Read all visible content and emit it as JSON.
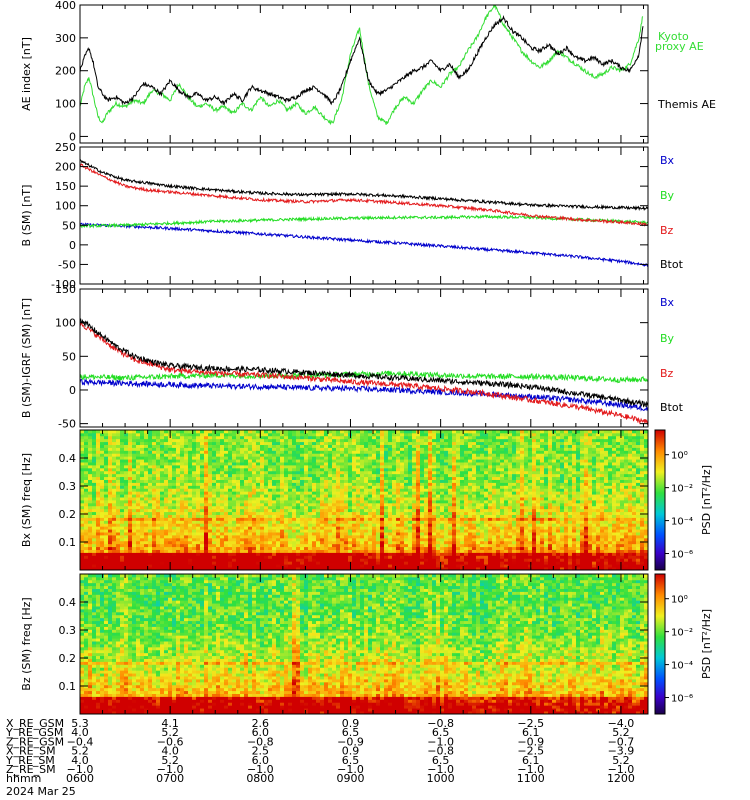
{
  "figure": {
    "date_label": "2024 Mar 25",
    "colors": {
      "black": "#000000",
      "red": "#e31a1c",
      "green": "#22dd22",
      "blue": "#0000cc",
      "kyoto": "#33dd33"
    }
  },
  "chart_data": [
    {
      "type": "line",
      "ylabel": "AE index [nT]",
      "ylim": [
        -20,
        400
      ],
      "yticks": [
        0,
        100,
        200,
        300,
        400
      ],
      "xlim": [
        6.0,
        12.3
      ],
      "series": [
        {
          "name": "Kyoto proxy AE",
          "color": "#33dd33",
          "x": [
            6.0,
            6.05,
            6.1,
            6.15,
            6.2,
            6.25,
            6.3,
            6.4,
            6.5,
            6.6,
            6.7,
            6.8,
            6.9,
            7.0,
            7.1,
            7.2,
            7.3,
            7.4,
            7.5,
            7.6,
            7.7,
            7.8,
            7.9,
            8.0,
            8.1,
            8.2,
            8.3,
            8.4,
            8.5,
            8.6,
            8.7,
            8.8,
            8.9,
            9.0,
            9.1,
            9.2,
            9.3,
            9.4,
            9.5,
            9.6,
            9.7,
            9.8,
            9.9,
            10.0,
            10.1,
            10.2,
            10.3,
            10.4,
            10.5,
            10.6,
            10.7,
            10.8,
            10.9,
            11.0,
            11.1,
            11.2,
            11.3,
            11.4,
            11.5,
            11.6,
            11.7,
            11.8,
            11.9,
            12.0,
            12.1,
            12.2,
            12.25
          ],
          "y": [
            90,
            150,
            180,
            120,
            60,
            40,
            70,
            100,
            90,
            110,
            100,
            140,
            130,
            110,
            160,
            120,
            90,
            100,
            80,
            90,
            70,
            100,
            80,
            120,
            90,
            110,
            80,
            100,
            70,
            90,
            60,
            40,
            110,
            250,
            330,
            160,
            60,
            40,
            90,
            120,
            100,
            140,
            170,
            150,
            190,
            210,
            260,
            300,
            360,
            400,
            340,
            300,
            260,
            230,
            210,
            230,
            260,
            240,
            220,
            200,
            180,
            190,
            210,
            200,
            220,
            300,
            380
          ]
        },
        {
          "name": "Themis AE",
          "color": "#000000",
          "x": [
            6.0,
            6.05,
            6.1,
            6.15,
            6.2,
            6.25,
            6.3,
            6.4,
            6.5,
            6.6,
            6.7,
            6.8,
            6.9,
            7.0,
            7.1,
            7.2,
            7.3,
            7.4,
            7.5,
            7.6,
            7.7,
            7.8,
            7.9,
            8.0,
            8.1,
            8.2,
            8.3,
            8.4,
            8.5,
            8.6,
            8.7,
            8.8,
            8.9,
            9.0,
            9.1,
            9.2,
            9.3,
            9.4,
            9.5,
            9.6,
            9.7,
            9.8,
            9.9,
            10.0,
            10.1,
            10.2,
            10.3,
            10.4,
            10.5,
            10.6,
            10.7,
            10.8,
            10.9,
            11.0,
            11.1,
            11.2,
            11.3,
            11.4,
            11.5,
            11.6,
            11.7,
            11.8,
            11.9,
            12.0,
            12.1,
            12.2,
            12.25
          ],
          "y": [
            200,
            240,
            270,
            220,
            150,
            130,
            110,
            120,
            100,
            120,
            160,
            150,
            130,
            170,
            140,
            120,
            130,
            110,
            120,
            100,
            130,
            110,
            150,
            140,
            130,
            120,
            110,
            120,
            140,
            150,
            130,
            100,
            150,
            230,
            300,
            170,
            130,
            140,
            160,
            180,
            200,
            210,
            230,
            200,
            220,
            180,
            200,
            250,
            300,
            340,
            360,
            320,
            300,
            270,
            260,
            280,
            250,
            270,
            240,
            230,
            240,
            220,
            230,
            210,
            200,
            250,
            350
          ]
        }
      ]
    },
    {
      "type": "line",
      "ylabel": "B (SM) [nT]",
      "ylim": [
        -100,
        250
      ],
      "yticks": [
        -100,
        -50,
        0,
        50,
        100,
        150,
        200,
        250
      ],
      "xlim": [
        6.0,
        12.3
      ],
      "series": [
        {
          "name": "Bx",
          "color": "#0000cc",
          "x": [
            6.0,
            6.5,
            7.0,
            7.5,
            8.0,
            8.5,
            9.0,
            9.5,
            10.0,
            10.5,
            11.0,
            11.5,
            12.0,
            12.3
          ],
          "y": [
            52,
            48,
            42,
            35,
            28,
            20,
            12,
            5,
            -3,
            -12,
            -20,
            -30,
            -42,
            -52
          ]
        },
        {
          "name": "By",
          "color": "#22dd22",
          "x": [
            6.0,
            6.5,
            7.0,
            7.5,
            8.0,
            8.5,
            9.0,
            9.5,
            10.0,
            10.5,
            11.0,
            11.5,
            12.0,
            12.3
          ],
          "y": [
            48,
            50,
            55,
            60,
            63,
            66,
            68,
            70,
            70,
            72,
            70,
            65,
            60,
            57
          ]
        },
        {
          "name": "Bz",
          "color": "#e31a1c",
          "x": [
            6.0,
            6.25,
            6.5,
            6.75,
            7.0,
            7.5,
            8.0,
            8.5,
            9.0,
            9.5,
            10.0,
            10.5,
            11.0,
            11.5,
            12.0,
            12.3
          ],
          "y": [
            205,
            175,
            150,
            140,
            135,
            125,
            115,
            110,
            115,
            108,
            100,
            90,
            75,
            65,
            58,
            52
          ]
        },
        {
          "name": "Btot",
          "color": "#000000",
          "x": [
            6.0,
            6.25,
            6.5,
            6.75,
            7.0,
            7.5,
            8.0,
            8.5,
            9.0,
            9.5,
            10.0,
            10.5,
            11.0,
            11.5,
            12.0,
            12.3
          ],
          "y": [
            215,
            185,
            165,
            158,
            150,
            140,
            132,
            128,
            130,
            125,
            118,
            110,
            102,
            98,
            95,
            93
          ]
        }
      ]
    },
    {
      "type": "line",
      "ylabel": "B (SM)-IGRF (SM) [nT]",
      "ylim": [
        -55,
        150
      ],
      "yticks": [
        -50,
        0,
        50,
        100,
        150
      ],
      "xlim": [
        6.0,
        12.3
      ],
      "series": [
        {
          "name": "Bx",
          "color": "#0000cc",
          "x": [
            6.0,
            6.5,
            7.0,
            7.5,
            8.0,
            8.5,
            9.0,
            9.5,
            10.0,
            10.5,
            11.0,
            11.5,
            12.0,
            12.3
          ],
          "y": [
            12,
            10,
            8,
            6,
            5,
            3,
            2,
            0,
            -3,
            -6,
            -10,
            -15,
            -22,
            -28
          ]
        },
        {
          "name": "By",
          "color": "#22dd22",
          "x": [
            6.0,
            6.5,
            7.0,
            7.5,
            8.0,
            8.5,
            9.0,
            9.5,
            10.0,
            10.5,
            11.0,
            11.5,
            12.0,
            12.3
          ],
          "y": [
            20,
            18,
            20,
            22,
            21,
            22,
            23,
            25,
            22,
            20,
            20,
            18,
            15,
            16
          ]
        },
        {
          "name": "Bz",
          "color": "#e31a1c",
          "x": [
            6.0,
            6.2,
            6.4,
            6.6,
            6.8,
            7.0,
            7.5,
            8.0,
            8.5,
            9.0,
            9.5,
            10.0,
            10.5,
            11.0,
            11.5,
            12.0,
            12.3
          ],
          "y": [
            100,
            80,
            60,
            45,
            38,
            30,
            25,
            22,
            18,
            12,
            8,
            2,
            -5,
            -15,
            -25,
            -38,
            -48
          ]
        },
        {
          "name": "Btot",
          "color": "#000000",
          "x": [
            6.0,
            6.2,
            6.4,
            6.6,
            6.8,
            7.0,
            7.5,
            8.0,
            8.5,
            9.0,
            9.5,
            10.0,
            10.5,
            11.0,
            11.5,
            12.0,
            12.3
          ],
          "y": [
            105,
            85,
            65,
            50,
            42,
            36,
            32,
            30,
            26,
            22,
            18,
            14,
            10,
            5,
            -5,
            -15,
            -22
          ]
        }
      ]
    },
    {
      "type": "heatmap",
      "ylabel": "Bx (SM) freq [Hz]",
      "yticks": [
        0.1,
        0.2,
        0.3,
        0.4
      ],
      "ylim": [
        0,
        0.5
      ],
      "xlim": [
        6.0,
        12.3
      ],
      "colorbar": {
        "label": "PSD [nT²/Hz]",
        "ticks": [
          "10⁰",
          "10⁻²",
          "10⁻⁴",
          "10⁻⁶"
        ],
        "log_values": [
          0,
          -2,
          -4,
          -6
        ],
        "range": [
          -7,
          1.5
        ]
      }
    },
    {
      "type": "heatmap",
      "ylabel": "Bz (SM) freq [Hz]",
      "yticks": [
        0.1,
        0.2,
        0.3,
        0.4
      ],
      "ylim": [
        0,
        0.5
      ],
      "xlim": [
        6.0,
        12.3
      ],
      "colorbar": {
        "label": "PSD [nT²/Hz]",
        "ticks": [
          "10⁰",
          "10⁻²",
          "10⁻⁴",
          "10⁻⁶"
        ],
        "log_values": [
          0,
          -2,
          -4,
          -6
        ],
        "range": [
          -7,
          1.5
        ]
      }
    }
  ],
  "legends": [
    [
      {
        "text": "Kyoto",
        "color": "#33dd33"
      },
      {
        "text": "proxy AE",
        "color": "#33dd33"
      },
      {
        "text": "Themis AE",
        "color": "#000000"
      }
    ],
    [
      {
        "text": "Bx",
        "color": "#0000cc"
      },
      {
        "text": "By",
        "color": "#22dd22"
      },
      {
        "text": "Bz",
        "color": "#e31a1c"
      },
      {
        "text": "Btot",
        "color": "#000000"
      }
    ],
    [
      {
        "text": "Bx",
        "color": "#0000cc"
      },
      {
        "text": "By",
        "color": "#22dd22"
      },
      {
        "text": "Bz",
        "color": "#e31a1c"
      },
      {
        "text": "Btot",
        "color": "#000000"
      }
    ]
  ],
  "orbit_table": {
    "times": [
      6,
      7,
      8,
      9,
      10,
      11,
      12
    ],
    "rows": [
      {
        "label": "X_RE_GSM",
        "values": [
          "5.3",
          "4.1",
          "2.6",
          "0.9",
          "−0.8",
          "−2.5",
          "−4.0"
        ]
      },
      {
        "label": "Y_RE_GSM",
        "values": [
          "4.0",
          "5.2",
          "6.0",
          "6.5",
          "6.5",
          "6.1",
          "5.2"
        ]
      },
      {
        "label": "Z_RE_GSM",
        "values": [
          "−0.4",
          "−0.6",
          "−0.8",
          "−0.9",
          "−1.0",
          "−0.9",
          "−0.7"
        ]
      },
      {
        "label": "X_RE_SM",
        "values": [
          "5.2",
          "4.0",
          "2.5",
          "0.9",
          "−0.8",
          "−2.5",
          "−3.9"
        ]
      },
      {
        "label": "Y_RE_SM",
        "values": [
          "4.0",
          "5.2",
          "6.0",
          "6.5",
          "6.5",
          "6.1",
          "5.2"
        ]
      },
      {
        "label": "Z_RE_SM",
        "values": [
          "−1.0",
          "−1.0",
          "−1.0",
          "−1.0",
          "−1.0",
          "−1.0",
          "−1.0"
        ]
      },
      {
        "label": "hhmm",
        "values": [
          "0600",
          "0700",
          "0800",
          "0900",
          "1000",
          "1100",
          "1200"
        ]
      }
    ]
  }
}
